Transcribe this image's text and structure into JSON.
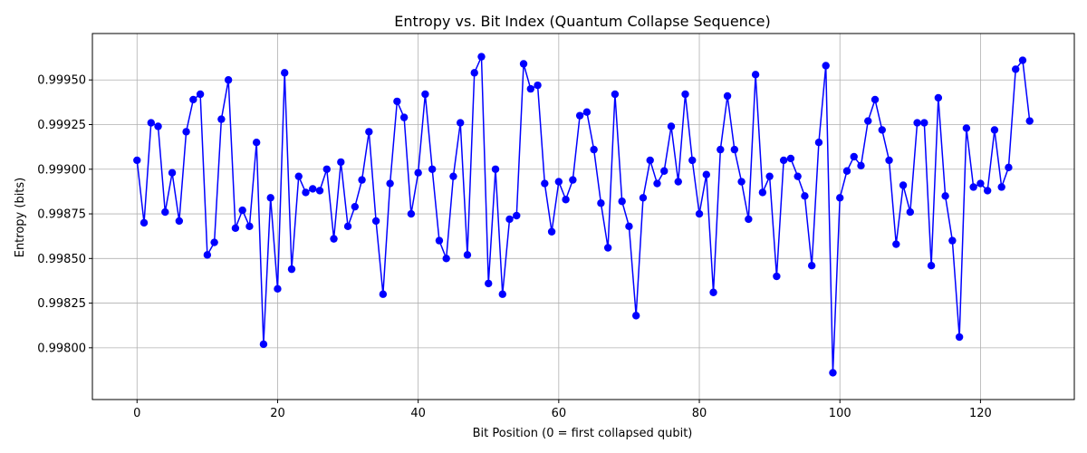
{
  "chart_data": {
    "type": "line",
    "title": "Entropy vs. Bit Index (Quantum Collapse Sequence)",
    "xlabel": "Bit Position (0 = first collapsed qubit)",
    "ylabel": "Entropy (bits)",
    "xlim": [
      -6.35,
      133.35
    ],
    "ylim": [
      0.99771,
      0.99976
    ],
    "xticks": [
      0,
      20,
      40,
      60,
      80,
      100,
      120
    ],
    "yticks": [
      0.998,
      0.99825,
      0.9985,
      0.99875,
      0.999,
      0.99925,
      0.9995
    ],
    "ytick_labels": [
      "0.99800",
      "0.99825",
      "0.99850",
      "0.99875",
      "0.99900",
      "0.99925",
      "0.99950"
    ],
    "grid": true,
    "line_color": "#0000ff",
    "marker": "circle",
    "series": [
      {
        "values": [
          0.99905,
          0.9987,
          0.99926,
          0.99924,
          0.99876,
          0.99898,
          0.99871,
          0.99921,
          0.99939,
          0.99942,
          0.99852,
          0.99859,
          0.99928,
          0.9995,
          0.99867,
          0.99877,
          0.99868,
          0.99915,
          0.99802,
          0.99884,
          0.99833,
          0.99954,
          0.99844,
          0.99896,
          0.99887,
          0.99889,
          0.99888,
          0.999,
          0.99861,
          0.99904,
          0.99868,
          0.99879,
          0.99894,
          0.99921,
          0.99871,
          0.9983,
          0.99892,
          0.99938,
          0.99929,
          0.99875,
          0.99898,
          0.99942,
          0.999,
          0.9986,
          0.9985,
          0.99896,
          0.99926,
          0.99852,
          0.99954,
          0.99963,
          0.99836,
          0.999,
          0.9983,
          0.99872,
          0.99874,
          0.99959,
          0.99945,
          0.99947,
          0.99892,
          0.99865,
          0.99893,
          0.99883,
          0.99894,
          0.9993,
          0.99932,
          0.99911,
          0.99881,
          0.99856,
          0.99942,
          0.99882,
          0.99868,
          0.99818,
          0.99884,
          0.99905,
          0.99892,
          0.99899,
          0.99924,
          0.99893,
          0.99942,
          0.99905,
          0.99875,
          0.99897,
          0.99831,
          0.99911,
          0.99941,
          0.99911,
          0.99893,
          0.99872,
          0.99953,
          0.99887,
          0.99896,
          0.9984,
          0.99905,
          0.99906,
          0.99896,
          0.99885,
          0.99846,
          0.99915,
          0.99958,
          0.99786,
          0.99884,
          0.99899,
          0.99907,
          0.99902,
          0.99927,
          0.99939,
          0.99922,
          0.99905,
          0.99858,
          0.99891,
          0.99876,
          0.99926,
          0.99926,
          0.99846,
          0.9994,
          0.99885,
          0.9986,
          0.99806,
          0.99923,
          0.9989,
          0.99892,
          0.99888,
          0.99922,
          0.9989,
          0.99901,
          0.99956,
          0.99961,
          0.99927
        ]
      }
    ]
  }
}
